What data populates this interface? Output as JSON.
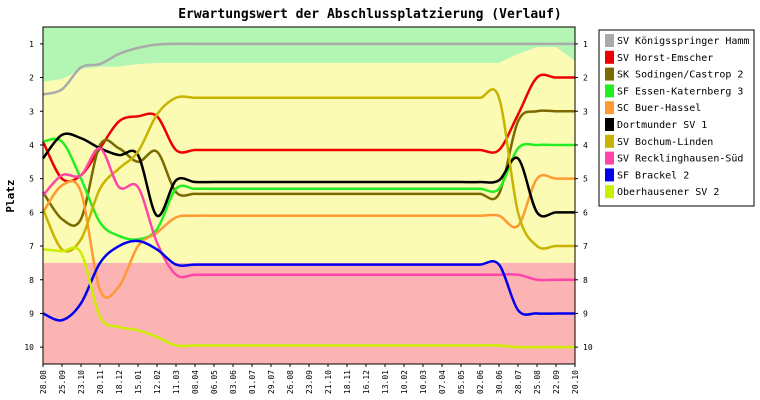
{
  "chart_data": {
    "type": "line",
    "title": "Erwartungswert der Abschlussplatzierung (Verlauf)",
    "ylabel": "Platz",
    "xlabel": "",
    "ylim": [
      0.5,
      10.5
    ],
    "y_inverted": true,
    "y_ticks": [
      "1",
      "2",
      "3",
      "4",
      "5",
      "6",
      "7",
      "8",
      "9",
      "10"
    ],
    "legend_position": "right",
    "grid": false,
    "categories": [
      "28.08",
      "25.09",
      "23.10",
      "20.11",
      "18.12",
      "15.01",
      "12.02",
      "11.03",
      "08.04",
      "06.05",
      "03.06",
      "01.07",
      "29.07",
      "26.08",
      "23.09",
      "21.10",
      "18.11",
      "16.12",
      "13.01",
      "10.02",
      "10.03",
      "07.04",
      "05.05",
      "02.06",
      "30.06",
      "28.07",
      "25.08",
      "22.09",
      "20.10"
    ],
    "background_zones": [
      {
        "name": "green",
        "color": "#b3f5b3"
      },
      {
        "name": "yellow",
        "color": "#fbfbb3"
      },
      {
        "name": "red",
        "color": "#fcb3b3",
        "from": 7.5,
        "to": 10.5
      }
    ],
    "green_yellow_boundary": [
      2.12,
      2.05,
      1.75,
      1.68,
      1.68,
      1.6,
      1.57,
      1.57,
      1.57,
      1.57,
      1.57,
      1.57,
      1.57,
      1.57,
      1.57,
      1.57,
      1.57,
      1.57,
      1.57,
      1.57,
      1.57,
      1.57,
      1.57,
      1.57,
      1.57,
      1.3,
      1.1,
      1.1,
      1.5
    ],
    "series": [
      {
        "name": "SV Königsspringer Hamm",
        "color": "#aaaaaa",
        "values": [
          2.5,
          2.35,
          1.7,
          1.6,
          1.3,
          1.12,
          1.02,
          1.0,
          1.0,
          1.0,
          1.0,
          1.0,
          1.0,
          1.0,
          1.0,
          1.0,
          1.0,
          1.0,
          1.0,
          1.0,
          1.0,
          1.0,
          1.0,
          1.0,
          1.0,
          1.0,
          1.0,
          1.0,
          1.0
        ]
      },
      {
        "name": "SV Horst-Emscher",
        "color": "#ee0000",
        "values": [
          3.9,
          5.0,
          4.9,
          4.1,
          3.3,
          3.15,
          3.15,
          4.15,
          4.15,
          4.15,
          4.15,
          4.15,
          4.15,
          4.15,
          4.15,
          4.15,
          4.15,
          4.15,
          4.15,
          4.15,
          4.15,
          4.15,
          4.15,
          4.15,
          4.15,
          3.1,
          2.0,
          2.0,
          2.0
        ]
      },
      {
        "name": "SK Sodingen/Castrop 2",
        "color": "#7a6a00",
        "values": [
          5.4,
          6.2,
          6.2,
          4.0,
          4.1,
          4.5,
          4.2,
          5.4,
          5.45,
          5.45,
          5.45,
          5.45,
          5.45,
          5.45,
          5.45,
          5.45,
          5.45,
          5.45,
          5.45,
          5.45,
          5.45,
          5.45,
          5.45,
          5.45,
          5.45,
          3.3,
          3.0,
          3.0,
          3.0
        ]
      },
      {
        "name": "SF Essen-Katernberg 3",
        "color": "#22ee22",
        "values": [
          3.9,
          3.9,
          5.0,
          6.3,
          6.7,
          6.8,
          6.5,
          5.3,
          5.3,
          5.3,
          5.3,
          5.3,
          5.3,
          5.3,
          5.3,
          5.3,
          5.3,
          5.3,
          5.3,
          5.3,
          5.3,
          5.3,
          5.3,
          5.3,
          5.3,
          4.1,
          4.0,
          4.0,
          4.0
        ]
      },
      {
        "name": "SC Buer-Hassel",
        "color": "#ff9933",
        "values": [
          6.0,
          5.2,
          5.4,
          8.3,
          8.2,
          7.0,
          6.6,
          6.15,
          6.1,
          6.1,
          6.1,
          6.1,
          6.1,
          6.1,
          6.1,
          6.1,
          6.1,
          6.1,
          6.1,
          6.1,
          6.1,
          6.1,
          6.1,
          6.1,
          6.1,
          6.4,
          5.0,
          5.0,
          5.0
        ]
      },
      {
        "name": "Dortmunder SV 1",
        "color": "#000000",
        "values": [
          4.4,
          3.7,
          3.8,
          4.1,
          4.3,
          4.3,
          6.1,
          5.05,
          5.1,
          5.1,
          5.1,
          5.1,
          5.1,
          5.1,
          5.1,
          5.1,
          5.1,
          5.1,
          5.1,
          5.1,
          5.1,
          5.1,
          5.1,
          5.1,
          5.05,
          4.4,
          6.0,
          6.0,
          6.0
        ]
      },
      {
        "name": "SV Bochum-Linden",
        "color": "#c8b400",
        "values": [
          5.9,
          7.1,
          6.8,
          5.3,
          4.7,
          4.2,
          3.1,
          2.6,
          2.6,
          2.6,
          2.6,
          2.6,
          2.6,
          2.6,
          2.6,
          2.6,
          2.6,
          2.6,
          2.6,
          2.6,
          2.6,
          2.6,
          2.6,
          2.6,
          2.6,
          6.0,
          7.0,
          7.0,
          7.0
        ]
      },
      {
        "name": "SV Recklinghausen-Süd",
        "color": "#ff44aa",
        "values": [
          5.5,
          4.9,
          4.9,
          4.1,
          5.25,
          5.25,
          6.9,
          7.85,
          7.85,
          7.85,
          7.85,
          7.85,
          7.85,
          7.85,
          7.85,
          7.85,
          7.85,
          7.85,
          7.85,
          7.85,
          7.85,
          7.85,
          7.85,
          7.85,
          7.85,
          7.85,
          8.0,
          8.0,
          8.0
        ]
      },
      {
        "name": "SF Brackel 2",
        "color": "#0000ee",
        "values": [
          9.0,
          9.2,
          8.7,
          7.5,
          7.0,
          6.85,
          7.1,
          7.55,
          7.55,
          7.55,
          7.55,
          7.55,
          7.55,
          7.55,
          7.55,
          7.55,
          7.55,
          7.55,
          7.55,
          7.55,
          7.55,
          7.55,
          7.55,
          7.55,
          7.55,
          8.9,
          9.0,
          9.0,
          9.0
        ]
      },
      {
        "name": "Oberhausener SV 2",
        "color": "#ccee00",
        "values": [
          7.1,
          7.15,
          7.2,
          9.1,
          9.4,
          9.5,
          9.7,
          9.95,
          9.95,
          9.95,
          9.95,
          9.95,
          9.95,
          9.95,
          9.95,
          9.95,
          9.95,
          9.95,
          9.95,
          9.95,
          9.95,
          9.95,
          9.95,
          9.95,
          9.95,
          10.0,
          10.0,
          10.0,
          10.0
        ]
      }
    ]
  }
}
